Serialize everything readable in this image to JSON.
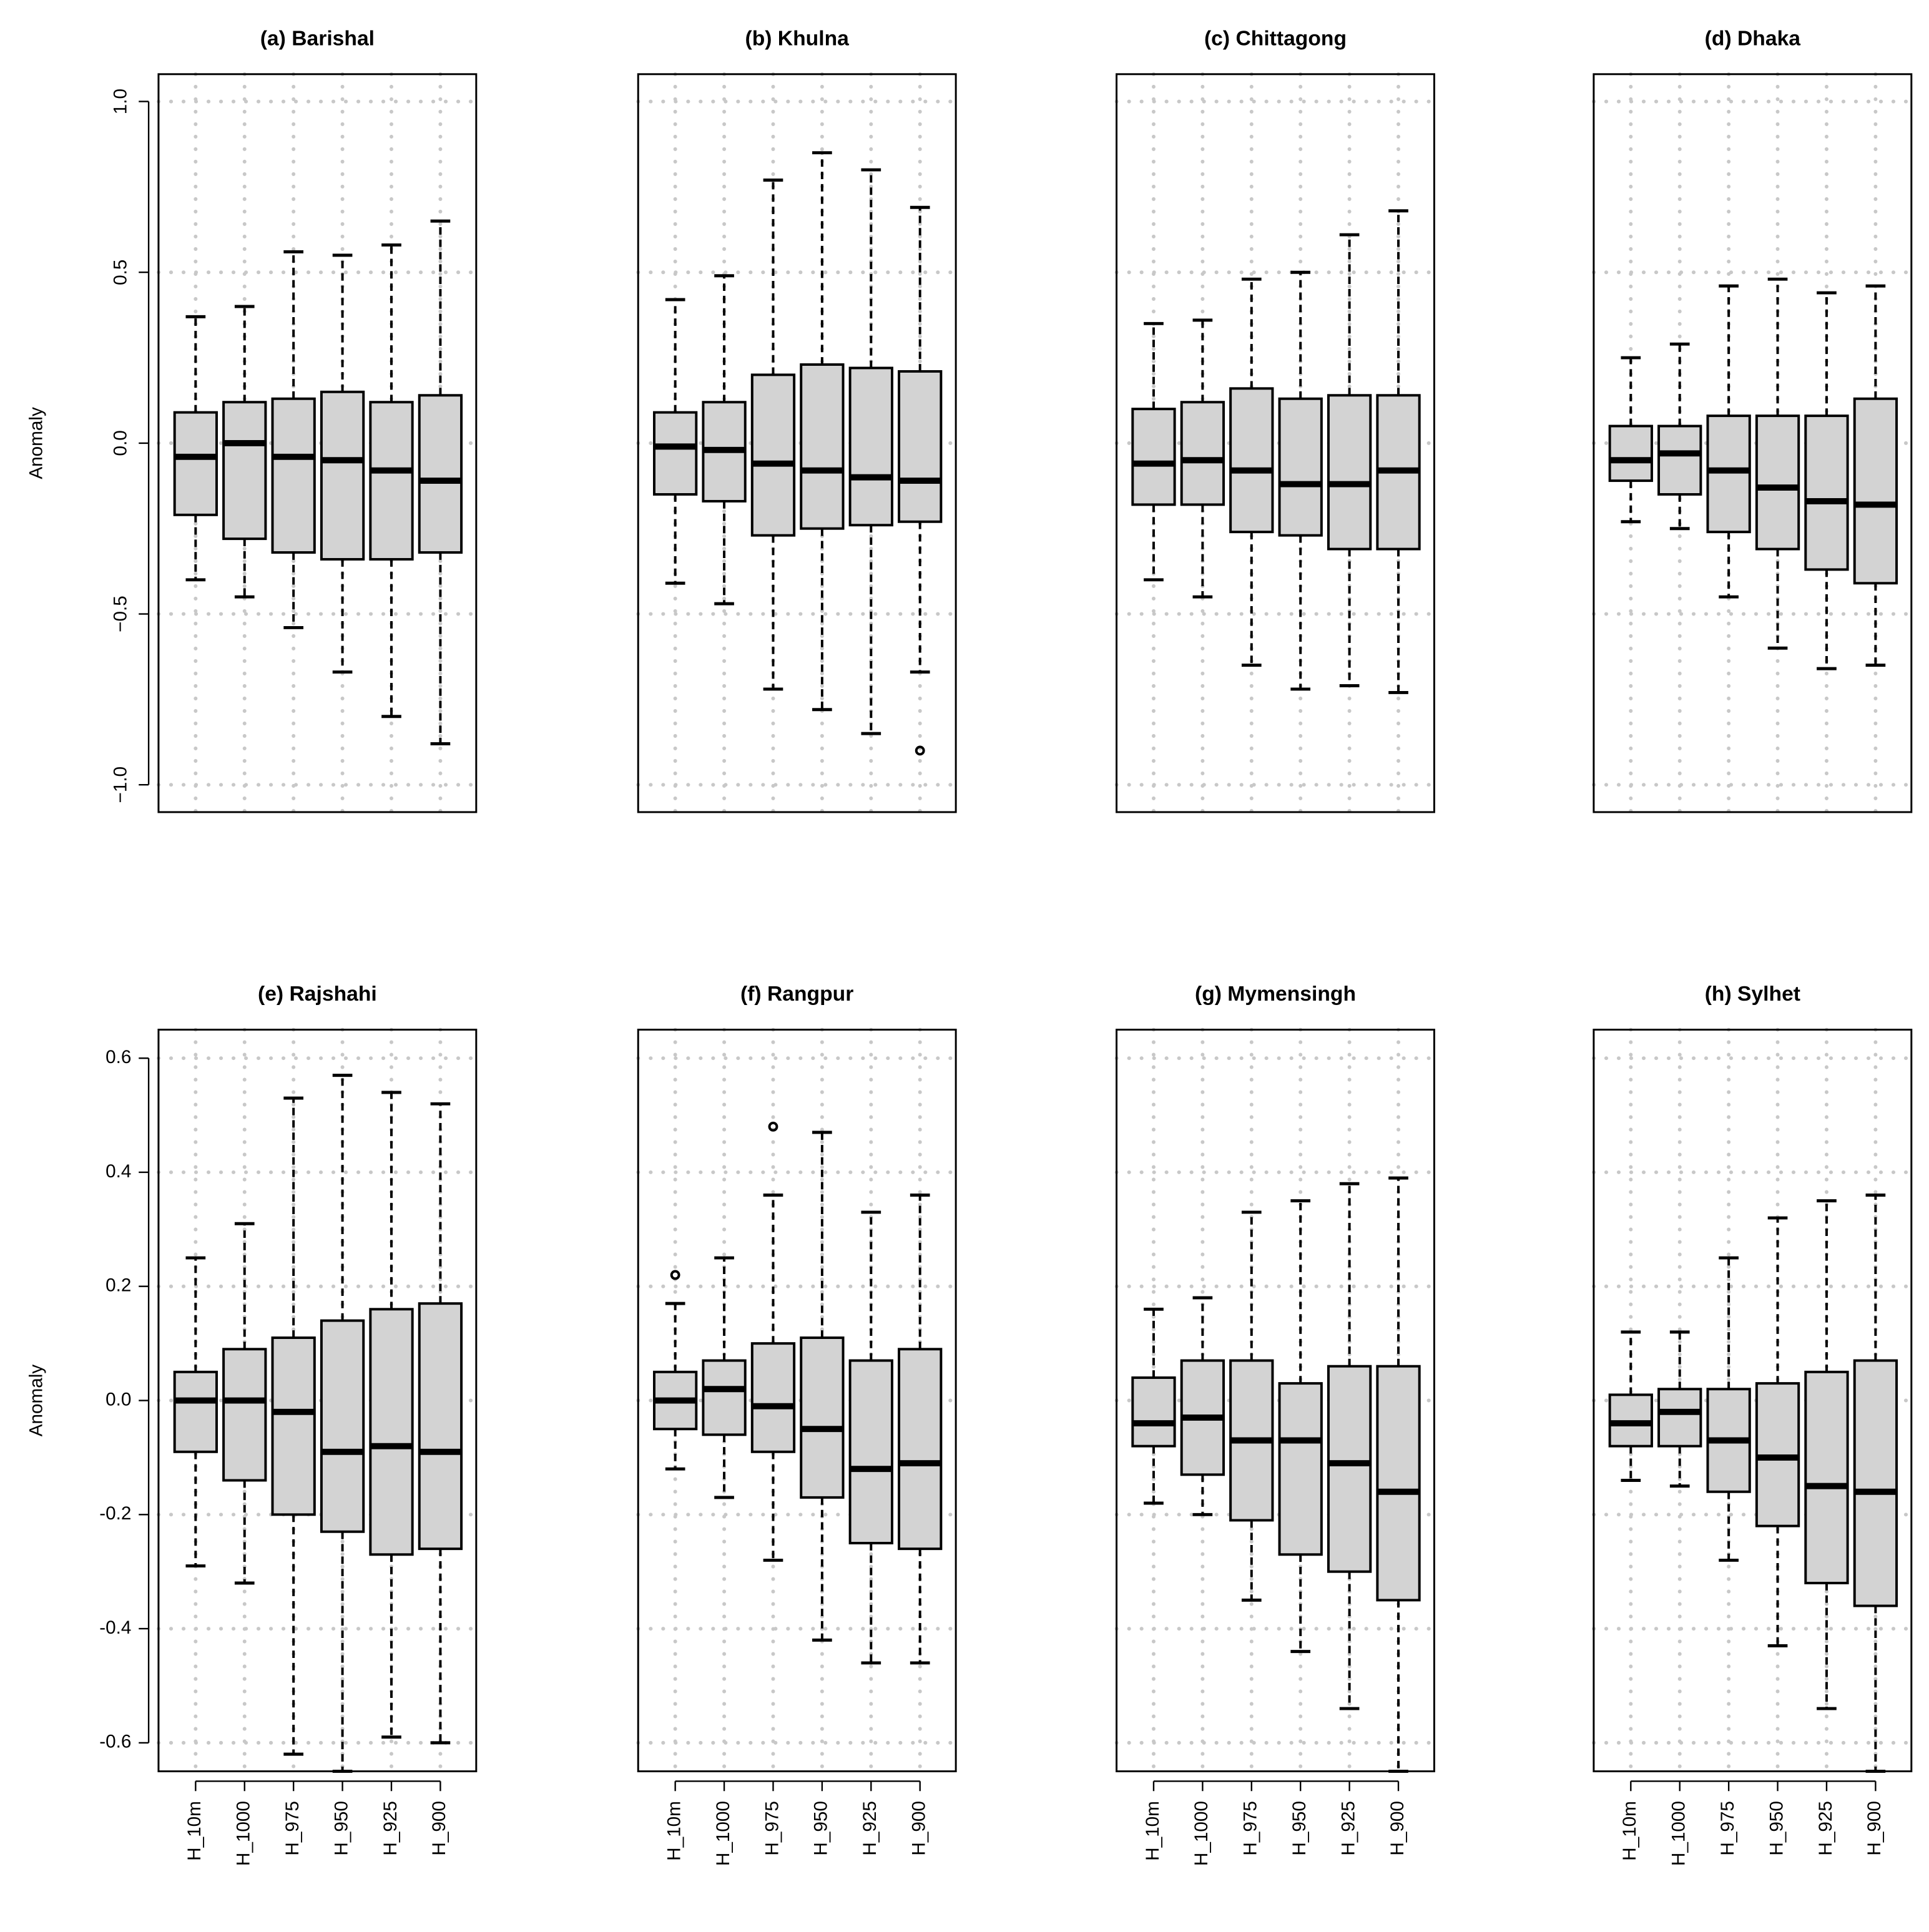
{
  "chart_data": [
    {
      "type": "box",
      "title": "(a) Barishal",
      "ylabel": "Anomaly",
      "ylim": [
        -1.08,
        1.08
      ],
      "ytick_vertical": true,
      "yticks": [
        {
          "value": -1.0,
          "label": "−1.0"
        },
        {
          "value": -0.5,
          "label": "−0.5"
        },
        {
          "value": 0.0,
          "label": "0.0"
        },
        0.5,
        {
          "value": 1.0,
          "label": "1.0"
        }
      ],
      "grid": true,
      "boxes": [
        {
          "low": -0.4,
          "q1": -0.21,
          "median": -0.04,
          "q3": 0.09,
          "high": 0.37
        },
        {
          "low": -0.45,
          "q1": -0.28,
          "median": 0.0,
          "q3": 0.12,
          "high": 0.4
        },
        {
          "low": -0.54,
          "q1": -0.32,
          "median": -0.04,
          "q3": 0.13,
          "high": 0.56
        },
        {
          "low": -0.67,
          "q1": -0.34,
          "median": -0.05,
          "q3": 0.15,
          "high": 0.55
        },
        {
          "low": -0.8,
          "q1": -0.34,
          "median": -0.08,
          "q3": 0.12,
          "high": 0.58
        },
        {
          "low": -0.88,
          "q1": -0.32,
          "median": -0.11,
          "q3": 0.14,
          "high": 0.65
        }
      ]
    },
    {
      "type": "box",
      "title": "(b) Khulna",
      "ylim": [
        -1.08,
        1.08
      ],
      "grid": true,
      "boxes": [
        {
          "low": -0.41,
          "q1": -0.15,
          "median": -0.01,
          "q3": 0.09,
          "high": 0.42
        },
        {
          "low": -0.47,
          "q1": -0.17,
          "median": -0.02,
          "q3": 0.12,
          "high": 0.49
        },
        {
          "low": -0.72,
          "q1": -0.27,
          "median": -0.06,
          "q3": 0.2,
          "high": 0.77
        },
        {
          "low": -0.78,
          "q1": -0.25,
          "median": -0.08,
          "q3": 0.23,
          "high": 0.85
        },
        {
          "low": -0.85,
          "q1": -0.24,
          "median": -0.1,
          "q3": 0.22,
          "high": 0.8
        },
        {
          "low": -0.67,
          "q1": -0.23,
          "median": -0.11,
          "q3": 0.21,
          "high": 0.69,
          "outliers": [
            -0.9
          ]
        }
      ]
    },
    {
      "type": "box",
      "title": "(c) Chittagong",
      "ylim": [
        -1.08,
        1.08
      ],
      "grid": true,
      "boxes": [
        {
          "low": -0.4,
          "q1": -0.18,
          "median": -0.06,
          "q3": 0.1,
          "high": 0.35
        },
        {
          "low": -0.45,
          "q1": -0.18,
          "median": -0.05,
          "q3": 0.12,
          "high": 0.36
        },
        {
          "low": -0.65,
          "q1": -0.26,
          "median": -0.08,
          "q3": 0.16,
          "high": 0.48
        },
        {
          "low": -0.72,
          "q1": -0.27,
          "median": -0.12,
          "q3": 0.13,
          "high": 0.5
        },
        {
          "low": -0.71,
          "q1": -0.31,
          "median": -0.12,
          "q3": 0.14,
          "high": 0.61
        },
        {
          "low": -0.73,
          "q1": -0.31,
          "median": -0.08,
          "q3": 0.14,
          "high": 0.68
        }
      ]
    },
    {
      "type": "box",
      "title": "(d) Dhaka",
      "ylim": [
        -1.08,
        1.08
      ],
      "grid": true,
      "boxes": [
        {
          "low": -0.23,
          "q1": -0.11,
          "median": -0.05,
          "q3": 0.05,
          "high": 0.25
        },
        {
          "low": -0.25,
          "q1": -0.15,
          "median": -0.03,
          "q3": 0.05,
          "high": 0.29
        },
        {
          "low": -0.45,
          "q1": -0.26,
          "median": -0.08,
          "q3": 0.08,
          "high": 0.46
        },
        {
          "low": -0.6,
          "q1": -0.31,
          "median": -0.13,
          "q3": 0.08,
          "high": 0.48
        },
        {
          "low": -0.66,
          "q1": -0.37,
          "median": -0.17,
          "q3": 0.08,
          "high": 0.44
        },
        {
          "low": -0.65,
          "q1": -0.41,
          "median": -0.18,
          "q3": 0.13,
          "high": 0.46
        }
      ]
    },
    {
      "type": "box",
      "title": "(e) Rajshahi",
      "ylabel": "Anomaly",
      "ylim": [
        -0.65,
        0.65
      ],
      "yticks": [
        -0.6,
        -0.4,
        -0.2,
        {
          "value": 0.0,
          "label": "0.0"
        },
        0.2,
        0.4,
        0.6
      ],
      "grid": true,
      "categories": [
        "H_10m",
        "H_1000",
        "H_975",
        "H_950",
        "H_925",
        "H_900"
      ],
      "boxes": [
        {
          "low": -0.29,
          "q1": -0.09,
          "median": 0.0,
          "q3": 0.05,
          "high": 0.25
        },
        {
          "low": -0.32,
          "q1": -0.14,
          "median": 0.0,
          "q3": 0.09,
          "high": 0.31
        },
        {
          "low": -0.62,
          "q1": -0.2,
          "median": -0.02,
          "q3": 0.11,
          "high": 0.53
        },
        {
          "low": -0.65,
          "q1": -0.23,
          "median": -0.09,
          "q3": 0.14,
          "high": 0.57
        },
        {
          "low": -0.59,
          "q1": -0.27,
          "median": -0.08,
          "q3": 0.16,
          "high": 0.54
        },
        {
          "low": -0.6,
          "q1": -0.26,
          "median": -0.09,
          "q3": 0.17,
          "high": 0.52
        }
      ]
    },
    {
      "type": "box",
      "title": "(f) Rangpur",
      "ylim": [
        -0.65,
        0.65
      ],
      "grid": true,
      "categories": [
        "H_10m",
        "H_1000",
        "H_975",
        "H_950",
        "H_925",
        "H_900"
      ],
      "boxes": [
        {
          "low": -0.12,
          "q1": -0.05,
          "median": 0.0,
          "q3": 0.05,
          "high": 0.17,
          "outliers": [
            0.22
          ]
        },
        {
          "low": -0.17,
          "q1": -0.06,
          "median": 0.02,
          "q3": 0.07,
          "high": 0.25
        },
        {
          "low": -0.28,
          "q1": -0.09,
          "median": -0.01,
          "q3": 0.1,
          "high": 0.36,
          "outliers": [
            0.48
          ]
        },
        {
          "low": -0.42,
          "q1": -0.17,
          "median": -0.05,
          "q3": 0.11,
          "high": 0.47
        },
        {
          "low": -0.46,
          "q1": -0.25,
          "median": -0.12,
          "q3": 0.07,
          "high": 0.33
        },
        {
          "low": -0.46,
          "q1": -0.26,
          "median": -0.11,
          "q3": 0.09,
          "high": 0.36
        }
      ]
    },
    {
      "type": "box",
      "title": "(g) Mymensingh",
      "ylim": [
        -0.65,
        0.65
      ],
      "grid": true,
      "categories": [
        "H_10m",
        "H_1000",
        "H_975",
        "H_950",
        "H_925",
        "H_900"
      ],
      "boxes": [
        {
          "low": -0.18,
          "q1": -0.08,
          "median": -0.04,
          "q3": 0.04,
          "high": 0.16
        },
        {
          "low": -0.2,
          "q1": -0.13,
          "median": -0.03,
          "q3": 0.07,
          "high": 0.18
        },
        {
          "low": -0.35,
          "q1": -0.21,
          "median": -0.07,
          "q3": 0.07,
          "high": 0.33
        },
        {
          "low": -0.44,
          "q1": -0.27,
          "median": -0.07,
          "q3": 0.03,
          "high": 0.35
        },
        {
          "low": -0.54,
          "q1": -0.3,
          "median": -0.11,
          "q3": 0.06,
          "high": 0.38
        },
        {
          "low": -0.65,
          "q1": -0.35,
          "median": -0.16,
          "q3": 0.06,
          "high": 0.39
        }
      ]
    },
    {
      "type": "box",
      "title": "(h) Sylhet",
      "ylim": [
        -0.65,
        0.65
      ],
      "grid": true,
      "categories": [
        "H_10m",
        "H_1000",
        "H_975",
        "H_950",
        "H_925",
        "H_900"
      ],
      "boxes": [
        {
          "low": -0.14,
          "q1": -0.08,
          "median": -0.04,
          "q3": 0.01,
          "high": 0.12
        },
        {
          "low": -0.15,
          "q1": -0.08,
          "median": -0.02,
          "q3": 0.02,
          "high": 0.12
        },
        {
          "low": -0.28,
          "q1": -0.16,
          "median": -0.07,
          "q3": 0.02,
          "high": 0.25
        },
        {
          "low": -0.43,
          "q1": -0.22,
          "median": -0.1,
          "q3": 0.03,
          "high": 0.32
        },
        {
          "low": -0.54,
          "q1": -0.32,
          "median": -0.15,
          "q3": 0.05,
          "high": 0.35
        },
        {
          "low": -0.65,
          "q1": -0.36,
          "median": -0.16,
          "q3": 0.07,
          "high": 0.36
        }
      ]
    }
  ]
}
